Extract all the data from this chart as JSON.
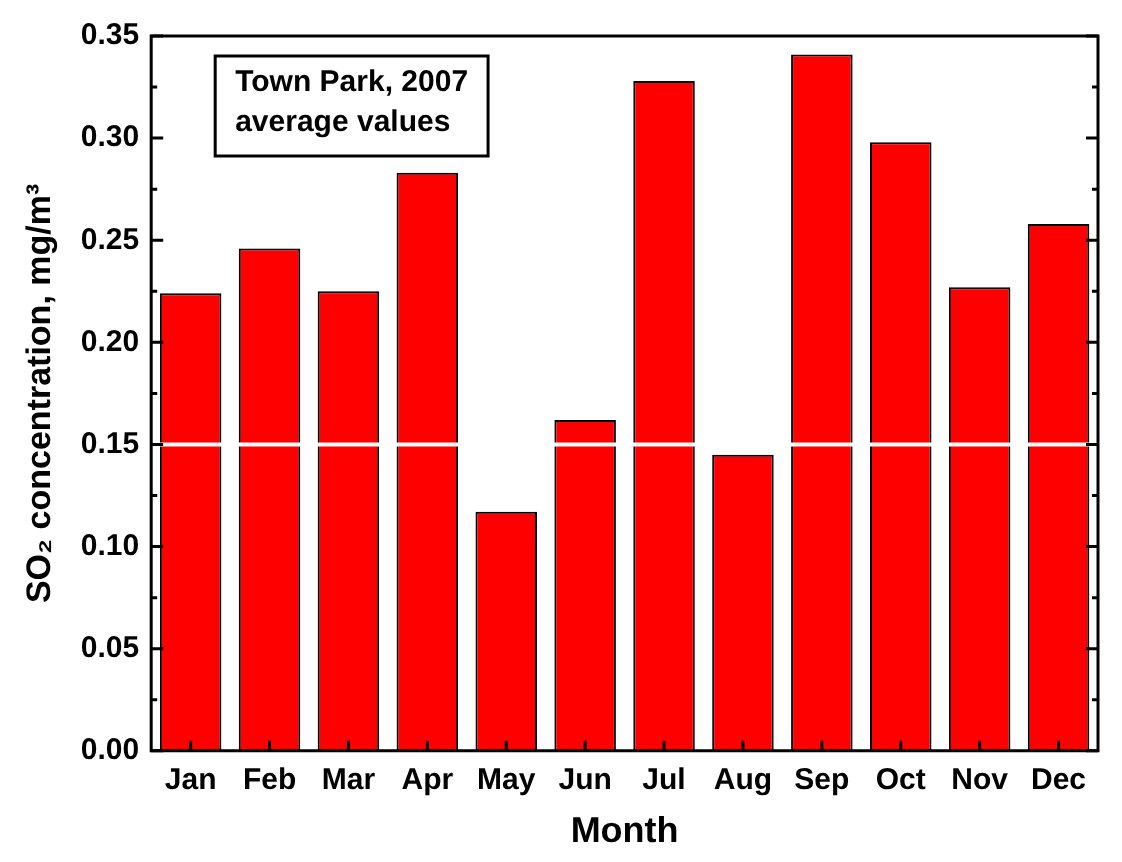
{
  "chart_data": {
    "type": "bar",
    "xlabel": "Month",
    "ylabel": "SO₂ concentration, mg/m³",
    "annotations": [
      "Town Park, 2007",
      "average values"
    ],
    "categories": [
      "Jan",
      "Feb",
      "Mar",
      "Apr",
      "May",
      "Jun",
      "Jul",
      "Aug",
      "Sep",
      "Oct",
      "Nov",
      "Dec"
    ],
    "values": [
      0.224,
      0.246,
      0.225,
      0.283,
      0.117,
      0.162,
      0.328,
      0.145,
      0.341,
      0.298,
      0.227,
      0.258
    ],
    "color": "#ff0000",
    "ylim": [
      0,
      0.35
    ],
    "yticks": [
      {
        "value": 0,
        "label": "0.00"
      },
      {
        "value": 0.05,
        "label": "0.05"
      },
      {
        "value": 0.1,
        "label": "0.10"
      },
      {
        "value": 0.15,
        "label": "0.15"
      },
      {
        "value": 0.2,
        "label": "0.20"
      },
      {
        "value": 0.25,
        "label": "0.25"
      },
      {
        "value": 0.3,
        "label": "0.30"
      },
      {
        "value": 0.35,
        "label": "0.35"
      }
    ],
    "ref_lines": [
      {
        "axis": "y",
        "value": 0.15,
        "color": "#ffffff"
      }
    ],
    "grid": false,
    "legend": false
  }
}
